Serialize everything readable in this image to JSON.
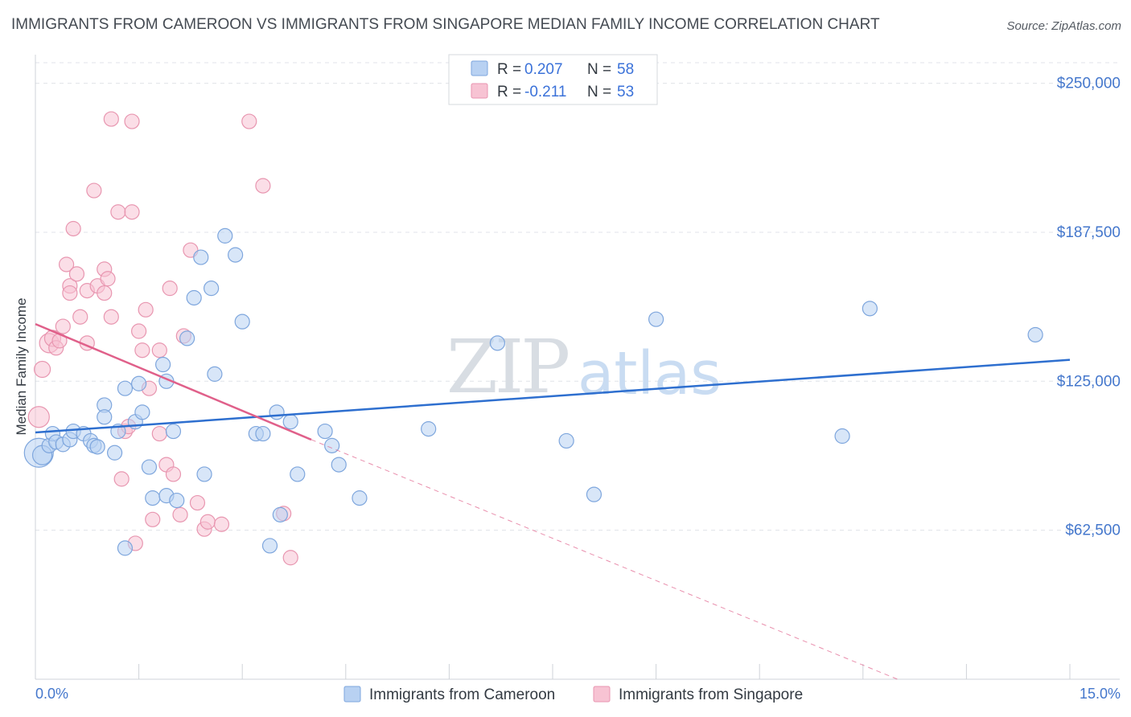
{
  "title": "IMMIGRANTS FROM CAMEROON VS IMMIGRANTS FROM SINGAPORE MEDIAN FAMILY INCOME CORRELATION CHART",
  "source": "Source: ZipAtlas.com",
  "watermark": {
    "zip": "ZIP",
    "atlas": "atlas"
  },
  "colors": {
    "blue_fill": "#b8d1f2",
    "blue_stroke": "#7ea6dd",
    "blue_line": "#2e6fcf",
    "pink_fill": "#f7c3d3",
    "pink_stroke": "#e896b0",
    "pink_line": "#e0608a",
    "grid": "#e0e3e8",
    "axis_text": "#4477cc"
  },
  "legend": {
    "rows": [
      {
        "r_label": "R =",
        "r_value": "0.207",
        "n_label": "N =",
        "n_value": "58"
      },
      {
        "r_label": "R =",
        "r_value": "-0.211",
        "n_label": "N =",
        "n_value": "53"
      }
    ]
  },
  "chart_data": {
    "type": "scatter",
    "title": "IMMIGRANTS FROM CAMEROON VS IMMIGRANTS FROM SINGAPORE MEDIAN FAMILY INCOME CORRELATION CHART",
    "xlabel": "",
    "ylabel": "Median Family Income",
    "xlim": [
      0,
      15
    ],
    "ylim": [
      0,
      262000
    ],
    "x_tick_labels": [
      "0.0%",
      "15.0%"
    ],
    "y_ticks": [
      62500,
      125000,
      187500,
      250000
    ],
    "y_tick_labels": [
      "$62,500",
      "$125,000",
      "$187,500",
      "$250,000"
    ],
    "grid": true,
    "legend_position": "top-center",
    "series": [
      {
        "name": "Immigrants from Cameroon",
        "r": 0.207,
        "n": 58,
        "trend": {
          "x": [
            0,
            15
          ],
          "y": [
            103500,
            134000
          ],
          "dashed_after": null
        },
        "points": [
          [
            0.05,
            95000,
            18
          ],
          [
            0.1,
            94000,
            12
          ],
          [
            0.2,
            98000,
            9
          ],
          [
            0.25,
            103000,
            9
          ],
          [
            0.3,
            99500,
            9
          ],
          [
            0.4,
            98500,
            9
          ],
          [
            0.5,
            100500,
            9
          ],
          [
            0.55,
            104000,
            9
          ],
          [
            0.7,
            103000,
            9
          ],
          [
            0.8,
            100000,
            9
          ],
          [
            0.85,
            98000,
            9
          ],
          [
            0.9,
            97500,
            9
          ],
          [
            1.0,
            115000,
            9
          ],
          [
            1.0,
            110000,
            9
          ],
          [
            1.15,
            95000,
            9
          ],
          [
            1.2,
            104000,
            9
          ],
          [
            1.3,
            55000,
            9
          ],
          [
            1.3,
            122000,
            9
          ],
          [
            1.45,
            108000,
            9
          ],
          [
            1.5,
            124000,
            9
          ],
          [
            1.55,
            112000,
            9
          ],
          [
            1.65,
            89000,
            9
          ],
          [
            1.7,
            76000,
            9
          ],
          [
            1.85,
            132000,
            9
          ],
          [
            1.9,
            125000,
            9
          ],
          [
            1.9,
            77000,
            9
          ],
          [
            2.0,
            104000,
            9
          ],
          [
            2.05,
            75000,
            9
          ],
          [
            2.2,
            143000,
            9
          ],
          [
            2.3,
            160000,
            9
          ],
          [
            2.4,
            177000,
            9
          ],
          [
            2.45,
            86000,
            9
          ],
          [
            2.55,
            164000,
            9
          ],
          [
            2.6,
            128000,
            9
          ],
          [
            2.75,
            186000,
            9
          ],
          [
            2.9,
            178000,
            9
          ],
          [
            3.0,
            150000,
            9
          ],
          [
            3.2,
            103000,
            9
          ],
          [
            3.3,
            103000,
            9
          ],
          [
            3.4,
            56000,
            9
          ],
          [
            3.5,
            112000,
            9
          ],
          [
            3.55,
            69000,
            9
          ],
          [
            3.7,
            108000,
            9
          ],
          [
            3.8,
            86000,
            9
          ],
          [
            4.2,
            104000,
            9
          ],
          [
            4.3,
            98000,
            9
          ],
          [
            4.4,
            90000,
            9
          ],
          [
            4.7,
            76000,
            9
          ],
          [
            5.7,
            105000,
            9
          ],
          [
            6.7,
            141000,
            9
          ],
          [
            7.7,
            100000,
            9
          ],
          [
            8.1,
            77500,
            9
          ],
          [
            9.0,
            151000,
            9
          ],
          [
            11.7,
            102000,
            9
          ],
          [
            12.1,
            155500,
            9
          ],
          [
            14.5,
            144500,
            9
          ]
        ]
      },
      {
        "name": "Immigrants from Singapore",
        "r": -0.211,
        "n": 53,
        "trend": {
          "x": [
            0,
            4.0
          ],
          "y": [
            149000,
            100500
          ],
          "dashed_to": [
            12.5,
            -2000
          ]
        },
        "points": [
          [
            0.05,
            110000,
            13
          ],
          [
            0.1,
            130000,
            10
          ],
          [
            0.2,
            141000,
            12
          ],
          [
            0.25,
            143000,
            10
          ],
          [
            0.3,
            139000,
            9
          ],
          [
            0.35,
            142000,
            9
          ],
          [
            0.4,
            148000,
            9
          ],
          [
            0.45,
            174000,
            9
          ],
          [
            0.5,
            165000,
            9
          ],
          [
            0.5,
            162000,
            9
          ],
          [
            0.55,
            189000,
            9
          ],
          [
            0.6,
            170000,
            9
          ],
          [
            0.65,
            152000,
            9
          ],
          [
            0.75,
            141000,
            9
          ],
          [
            0.75,
            163000,
            9
          ],
          [
            0.85,
            205000,
            9
          ],
          [
            0.9,
            165000,
            9
          ],
          [
            1.0,
            172000,
            9
          ],
          [
            1.0,
            162000,
            9
          ],
          [
            1.05,
            168000,
            9
          ],
          [
            1.1,
            152000,
            9
          ],
          [
            1.1,
            235000,
            9
          ],
          [
            1.2,
            196000,
            9
          ],
          [
            1.25,
            84000,
            9
          ],
          [
            1.3,
            104000,
            9
          ],
          [
            1.35,
            106000,
            9
          ],
          [
            1.4,
            196000,
            9
          ],
          [
            1.45,
            57000,
            9
          ],
          [
            1.5,
            146000,
            9
          ],
          [
            1.55,
            138000,
            9
          ],
          [
            1.6,
            155000,
            9
          ],
          [
            1.65,
            122000,
            9
          ],
          [
            1.7,
            67000,
            9
          ],
          [
            1.8,
            103000,
            9
          ],
          [
            1.8,
            138000,
            9
          ],
          [
            1.9,
            90000,
            9
          ],
          [
            1.95,
            164000,
            9
          ],
          [
            2.0,
            86000,
            9
          ],
          [
            2.1,
            69000,
            9
          ],
          [
            2.15,
            144000,
            9
          ],
          [
            2.25,
            180000,
            9
          ],
          [
            2.35,
            74000,
            9
          ],
          [
            2.45,
            63000,
            9
          ],
          [
            2.5,
            66000,
            9
          ],
          [
            2.7,
            65000,
            9
          ],
          [
            3.1,
            234000,
            9
          ],
          [
            3.3,
            207000,
            9
          ],
          [
            3.6,
            69500,
            9
          ],
          [
            3.7,
            51000,
            9
          ],
          [
            1.4,
            234000,
            9
          ]
        ]
      }
    ]
  },
  "bottom_legend": [
    "Immigrants from Cameroon",
    "Immigrants from Singapore"
  ]
}
